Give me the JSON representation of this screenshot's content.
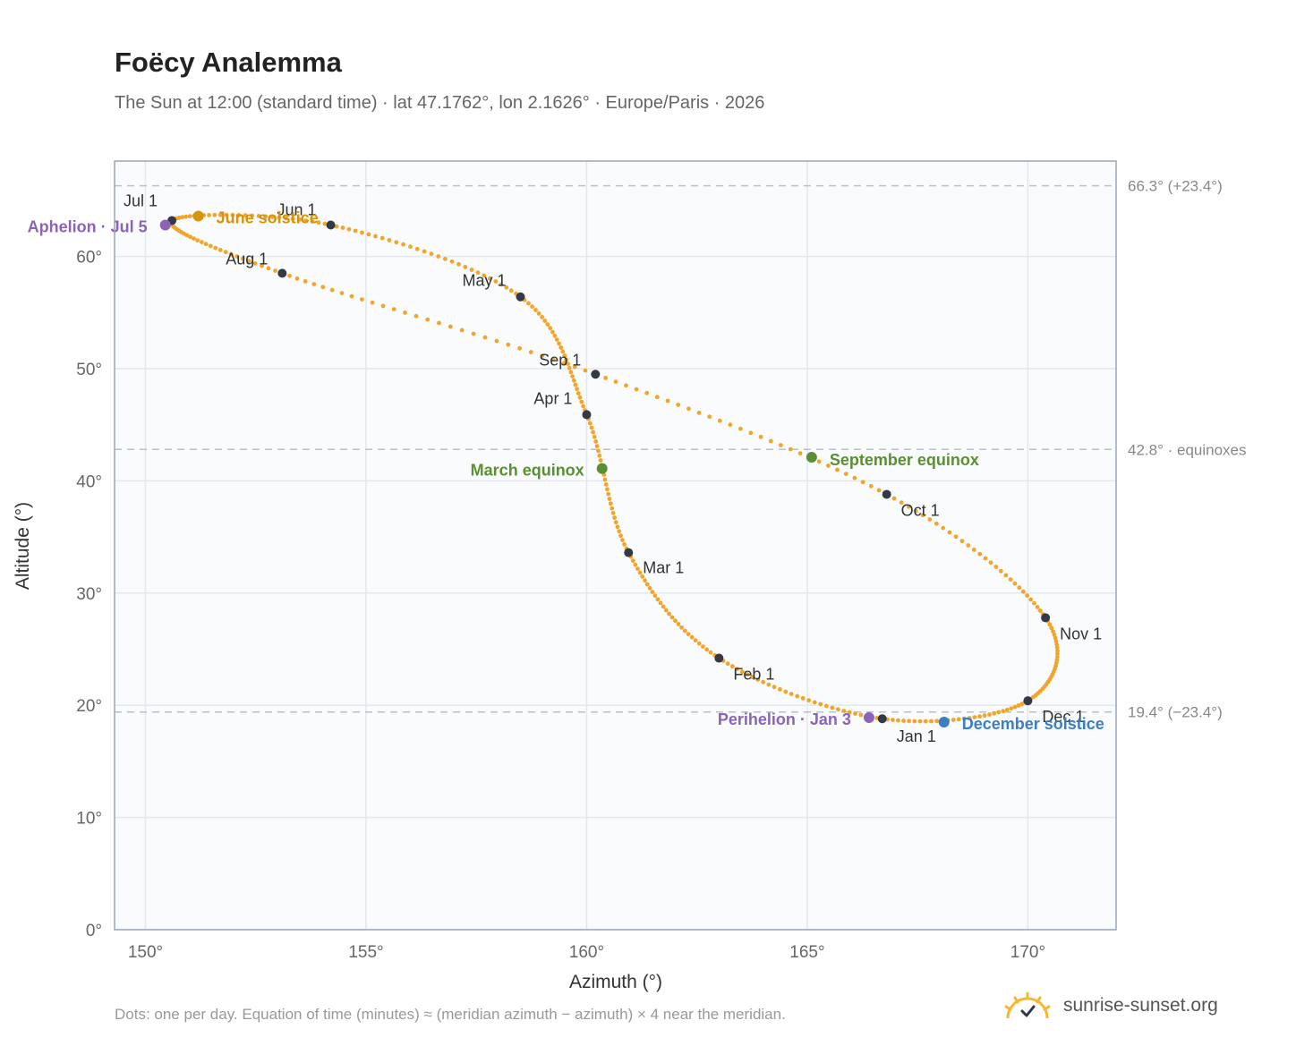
{
  "title": "Foëcy Analemma",
  "subtitle": "The Sun at 12:00 (standard time) · lat 47.1762°, lon 2.1626° · Europe/Paris · 2026",
  "footnote": "Dots: one per day. Equation of time (minutes) ≈ (meridian azimuth − azimuth) × 4 near the meridian.",
  "brand": {
    "name": "sunrise-sunset.org",
    "logo_icon": "sun-icon"
  },
  "chart_data": {
    "type": "scatter",
    "xlabel": "Azimuth (°)",
    "ylabel": "Altitude (°)",
    "xlim": [
      149.3,
      172.0
    ],
    "ylim": [
      0,
      68.5
    ],
    "grid": true,
    "xticks": [
      150,
      155,
      160,
      165,
      170
    ],
    "xtick_labels": [
      "150°",
      "155°",
      "160°",
      "165°",
      "170°"
    ],
    "yticks": [
      0,
      10,
      20,
      30,
      40,
      50,
      60
    ],
    "ytick_labels": [
      "0°",
      "10°",
      "20°",
      "30°",
      "40°",
      "50°",
      "60°"
    ],
    "reference_lines": [
      {
        "y": 66.3,
        "label": "66.3° (+23.4°)"
      },
      {
        "y": 42.8,
        "label": "42.8° · equinoxes"
      },
      {
        "y": 19.4,
        "label": "19.4° (−23.4°)"
      }
    ],
    "curve_color": "#F2A52B",
    "series": [
      {
        "values": [
          [
            166.7,
            18.8
          ],
          [
            163.0,
            24.2
          ],
          [
            160.95,
            33.6
          ],
          [
            160.0,
            45.9
          ],
          [
            158.5,
            56.4
          ],
          [
            154.2,
            62.8
          ],
          [
            150.6,
            63.2
          ],
          [
            153.1,
            58.5
          ],
          [
            160.2,
            49.5
          ],
          [
            166.8,
            38.8
          ],
          [
            170.4,
            27.8
          ],
          [
            170.0,
            20.4
          ],
          [
            166.7,
            18.8
          ]
        ]
      }
    ],
    "month_markers": [
      {
        "label": "Jan 1",
        "x": 166.7,
        "y": 18.8,
        "color": "#333a45"
      },
      {
        "label": "Feb 1",
        "x": 163.0,
        "y": 24.2,
        "color": "#333a45"
      },
      {
        "label": "Mar 1",
        "x": 160.95,
        "y": 33.6,
        "color": "#333a45"
      },
      {
        "label": "Apr 1",
        "x": 160.0,
        "y": 45.9,
        "color": "#333a45"
      },
      {
        "label": "May 1",
        "x": 158.5,
        "y": 56.4,
        "color": "#333a45"
      },
      {
        "label": "Jun 1",
        "x": 154.2,
        "y": 62.8,
        "color": "#333a45"
      },
      {
        "label": "Jul 1",
        "x": 150.6,
        "y": 63.2,
        "color": "#333a45"
      },
      {
        "label": "Aug 1",
        "x": 153.1,
        "y": 58.5,
        "color": "#333a45"
      },
      {
        "label": "Sep 1",
        "x": 160.2,
        "y": 49.5,
        "color": "#333a45"
      },
      {
        "label": "Oct 1",
        "x": 166.8,
        "y": 38.8,
        "color": "#333a45"
      },
      {
        "label": "Nov 1",
        "x": 170.4,
        "y": 27.8,
        "color": "#333a45"
      },
      {
        "label": "Dec 1",
        "x": 170.0,
        "y": 20.4,
        "color": "#333a45"
      }
    ],
    "events": [
      {
        "label": "June solstice",
        "x": 151.2,
        "y": 63.6,
        "color": "#D4940F"
      },
      {
        "label": "Aphelion · Jul 5",
        "x": 150.45,
        "y": 62.8,
        "color": "#8B64B8"
      },
      {
        "label": "March equinox",
        "x": 160.35,
        "y": 41.1,
        "color": "#5A8F32"
      },
      {
        "label": "September equinox",
        "x": 165.1,
        "y": 42.1,
        "color": "#5A8F32"
      },
      {
        "label": "Perihelion · Jan 3",
        "x": 166.4,
        "y": 18.9,
        "color": "#8B64B8"
      },
      {
        "label": "December solstice",
        "x": 168.1,
        "y": 18.5,
        "color": "#3A7EC6"
      }
    ]
  }
}
